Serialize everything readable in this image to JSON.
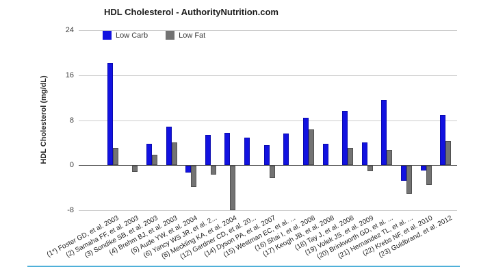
{
  "chart_data": {
    "type": "bar",
    "title": "HDL Cholesterol - AuthorityNutrition.com",
    "ylabel": "HDL Cholesterol (mg/dL)",
    "ylim": [
      -8,
      24
    ],
    "yticks": [
      24,
      16,
      8,
      0,
      -8
    ],
    "grid": true,
    "legend_position": "top-left-inside-plot",
    "categories": [
      "(1*) Foster GD, et al. 2003",
      "(2) Samaha FF, et al. 2003",
      "(3) Sondike SB, et al. 2003",
      "(4) Brehm BJ, et al. 2003",
      "(5) Aude YW, et al. 2004",
      "(6) Yancy WS JR, et al. 2...",
      "(8) Meckling KA, et al. 2004",
      "(12) Gardner CD, et al. 20...",
      "(14) Dyson PA, et al. 2007",
      "(15) Westman EC, et al. ...",
      "(16) Shai I, et al. 2008",
      "(17) Keogh JB, et al. 2008",
      "(18) Tay J, et al. 2008",
      "(19) Volek JS, et al. 2009",
      "(20) Brinkworth GD, et al. ...",
      "(21) Hernandez TL, et al. ...",
      "(22) Krebs NF, et al. 2010",
      "(23) Guldbrand, et al. 2012"
    ],
    "series": [
      {
        "name": "Low Carb",
        "color": "#1212e0",
        "border_color": "#0909b0",
        "values": [
          18.1,
          0,
          3.8,
          6.9,
          -1.2,
          5.4,
          5.8,
          4.9,
          3.5,
          5.6,
          8.4,
          3.8,
          9.7,
          4.0,
          11.6,
          -2.6,
          -0.8,
          8.9
        ]
      },
      {
        "name": "Low Fat",
        "color": "#737373",
        "border_color": "#4f4f4f",
        "values": [
          3.1,
          -1.1,
          1.8,
          4.0,
          -3.8,
          -1.5,
          -7.9,
          0,
          -2.1,
          0,
          6.3,
          0,
          3.1,
          -1.0,
          2.7,
          -4.9,
          -3.4,
          4.3
        ]
      }
    ],
    "gridline_color": "#cccccc",
    "zero_line_color": "#474747",
    "accent_underline_color": "#4fb0d9"
  }
}
